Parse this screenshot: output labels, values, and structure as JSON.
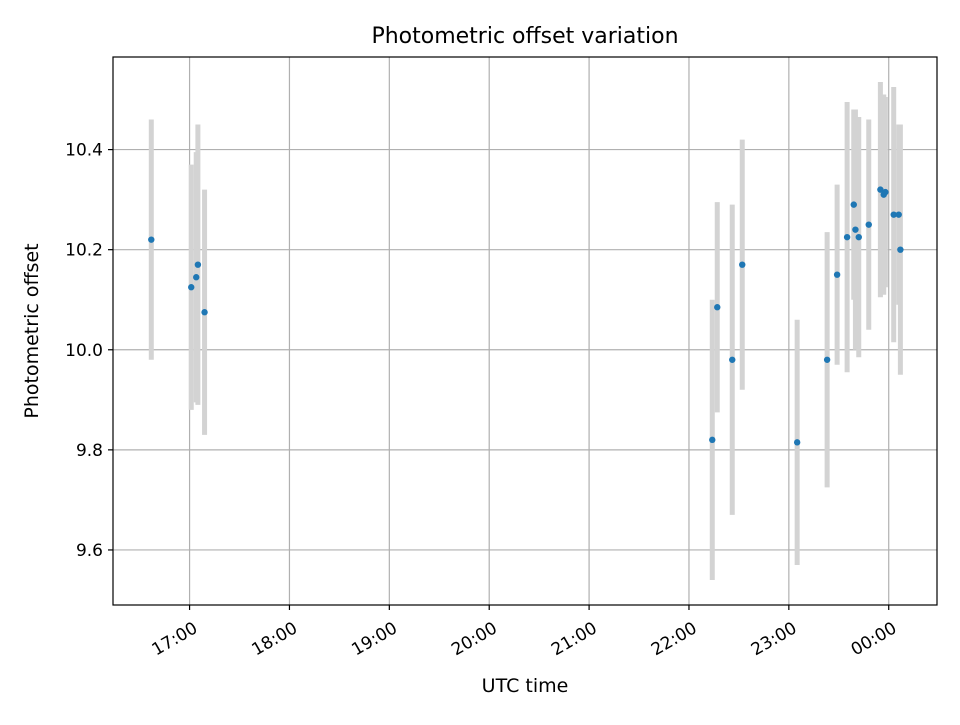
{
  "chart_data": {
    "type": "scatter",
    "title": "Photometric offset variation",
    "xlabel": "UTC time",
    "ylabel": "Photometric offset",
    "grid": true,
    "xlim": [
      "16:14",
      "00:29"
    ],
    "ylim": [
      9.49,
      10.585
    ],
    "x_ticks": [
      "17:00",
      "18:00",
      "19:00",
      "20:00",
      "21:00",
      "22:00",
      "23:00",
      "00:00"
    ],
    "y_ticks": [
      "9.6",
      "9.8",
      "10.0",
      "10.2",
      "10.4"
    ],
    "colors": {
      "point": "#1f77b4",
      "errorbar": "#d3d3d3",
      "grid": "#b0b0b0"
    },
    "points": [
      {
        "x": "16:37",
        "y": 10.22,
        "err": 0.24
      },
      {
        "x": "17:01",
        "y": 10.125,
        "err": 0.245
      },
      {
        "x": "17:04",
        "y": 10.145,
        "err": 0.25
      },
      {
        "x": "17:05",
        "y": 10.17,
        "err": 0.28
      },
      {
        "x": "17:09",
        "y": 10.075,
        "err": 0.245
      },
      {
        "x": "22:14",
        "y": 9.82,
        "err": 0.28
      },
      {
        "x": "22:17",
        "y": 10.085,
        "err": 0.21
      },
      {
        "x": "22:26",
        "y": 9.98,
        "err": 0.31
      },
      {
        "x": "22:32",
        "y": 10.17,
        "err": 0.25
      },
      {
        "x": "23:05",
        "y": 9.815,
        "err": 0.245
      },
      {
        "x": "23:23",
        "y": 9.98,
        "err": 0.255
      },
      {
        "x": "23:29",
        "y": 10.15,
        "err": 0.18
      },
      {
        "x": "23:35",
        "y": 10.225,
        "err": 0.27
      },
      {
        "x": "23:39",
        "y": 10.29,
        "err": 0.19
      },
      {
        "x": "23:40",
        "y": 10.24,
        "err": 0.24
      },
      {
        "x": "23:42",
        "y": 10.225,
        "err": 0.24
      },
      {
        "x": "23:48",
        "y": 10.25,
        "err": 0.21
      },
      {
        "x": "23:55",
        "y": 10.32,
        "err": 0.215
      },
      {
        "x": "23:57",
        "y": 10.31,
        "err": 0.2
      },
      {
        "x": "23:58",
        "y": 10.315,
        "err": 0.19
      },
      {
        "x": "00:03",
        "y": 10.27,
        "err": 0.255
      },
      {
        "x": "00:06",
        "y": 10.27,
        "err": 0.18
      },
      {
        "x": "00:07",
        "y": 10.2,
        "err": 0.25
      }
    ]
  }
}
